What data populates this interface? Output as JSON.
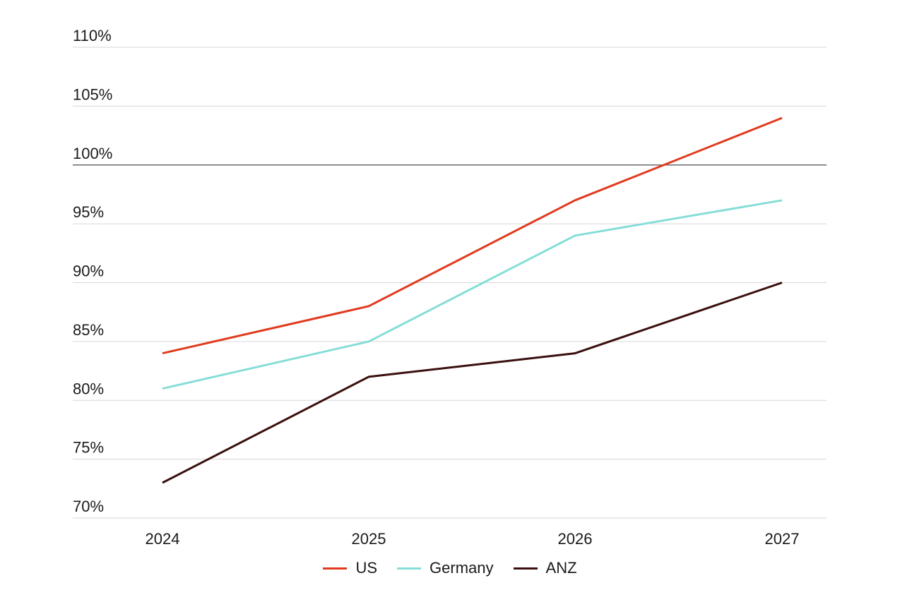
{
  "chart_data": {
    "type": "line",
    "categories": [
      "2024",
      "2025",
      "2026",
      "2027"
    ],
    "series": [
      {
        "name": "US",
        "color": "#e03a1e",
        "values": [
          84,
          88,
          97,
          104
        ]
      },
      {
        "name": "Germany",
        "color": "#86ddd8",
        "values": [
          81,
          85,
          94,
          97
        ]
      },
      {
        "name": "ANZ",
        "color": "#3b0f0f",
        "values": [
          73,
          82,
          84,
          90
        ]
      }
    ],
    "y_ticks": [
      "70%",
      "75%",
      "80%",
      "85%",
      "90%",
      "95%",
      "100%",
      "105%",
      "110%"
    ],
    "ylim": [
      70,
      110
    ],
    "reference_line": 100,
    "grid": true,
    "legend_position": "bottom",
    "title": "",
    "xlabel": "",
    "ylabel": ""
  }
}
